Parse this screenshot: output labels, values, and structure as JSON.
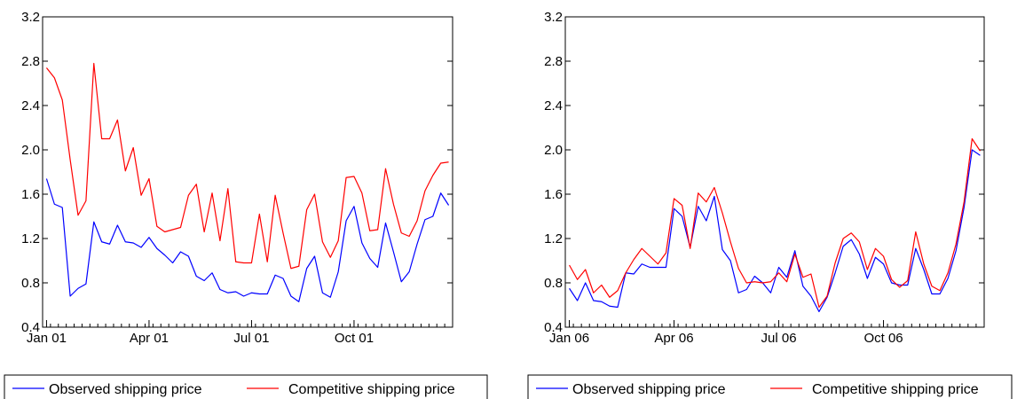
{
  "chart_data": [
    {
      "type": "line",
      "title": "",
      "xlabel": "",
      "ylabel": "",
      "ylim": [
        0.4,
        3.2
      ],
      "yticks": [
        "0.4",
        "0.8",
        "1.2",
        "1.6",
        "2.0",
        "2.4",
        "2.8",
        "3.2"
      ],
      "xtick_labels": [
        {
          "label": "Jan 01",
          "week": 0
        },
        {
          "label": "Apr 01",
          "week": 13
        },
        {
          "label": "Jul 01",
          "week": 26
        },
        {
          "label": "Oct 01",
          "week": 39
        }
      ],
      "n_weeks": 52,
      "grid": false,
      "legend_position": "bottom",
      "series": [
        {
          "name": "Observed shipping price",
          "color": "#0000ff",
          "values": [
            1.74,
            1.51,
            1.48,
            0.68,
            0.75,
            0.79,
            1.35,
            1.17,
            1.15,
            1.32,
            1.17,
            1.16,
            1.12,
            1.21,
            1.11,
            1.05,
            0.98,
            1.08,
            1.04,
            0.86,
            0.82,
            0.89,
            0.74,
            0.71,
            0.72,
            0.68,
            0.71,
            0.7,
            0.7,
            0.87,
            0.84,
            0.68,
            0.63,
            0.93,
            1.04,
            0.71,
            0.67,
            0.9,
            1.36,
            1.49,
            1.16,
            1.02,
            0.94,
            1.34,
            1.08,
            0.81,
            0.9,
            1.15,
            1.37,
            1.4,
            1.61,
            1.5
          ]
        },
        {
          "name": "Competitive shipping price",
          "color": "#ff0000",
          "values": [
            2.74,
            2.65,
            2.45,
            1.91,
            1.41,
            1.54,
            2.78,
            2.1,
            2.1,
            2.27,
            1.81,
            2.02,
            1.59,
            1.74,
            1.31,
            1.26,
            1.28,
            1.3,
            1.59,
            1.69,
            1.26,
            1.61,
            1.18,
            1.65,
            0.99,
            0.98,
            0.98,
            1.42,
            0.99,
            1.59,
            1.25,
            0.93,
            0.95,
            1.46,
            1.6,
            1.17,
            1.03,
            1.18,
            1.75,
            1.76,
            1.61,
            1.27,
            1.28,
            1.83,
            1.51,
            1.25,
            1.22,
            1.36,
            1.63,
            1.77,
            1.88,
            1.89
          ]
        }
      ]
    },
    {
      "type": "line",
      "title": "",
      "xlabel": "",
      "ylabel": "",
      "ylim": [
        0.4,
        3.2
      ],
      "yticks": [
        "0.4",
        "0.8",
        "1.2",
        "1.6",
        "2.0",
        "2.4",
        "2.8",
        "3.2"
      ],
      "xtick_labels": [
        {
          "label": "Jan 06",
          "week": 0
        },
        {
          "label": "Apr 06",
          "week": 13
        },
        {
          "label": "Jul 06",
          "week": 26
        },
        {
          "label": "Oct 06",
          "week": 39
        }
      ],
      "n_weeks": 52,
      "grid": false,
      "legend_position": "bottom",
      "series": [
        {
          "name": "Observed shipping price",
          "color": "#0000ff",
          "values": [
            0.75,
            0.64,
            0.8,
            0.64,
            0.63,
            0.59,
            0.58,
            0.89,
            0.88,
            0.97,
            0.94,
            0.94,
            0.94,
            1.47,
            1.4,
            1.12,
            1.49,
            1.36,
            1.58,
            1.1,
            1.0,
            0.71,
            0.74,
            0.86,
            0.8,
            0.71,
            0.94,
            0.85,
            1.09,
            0.77,
            0.68,
            0.54,
            0.67,
            0.89,
            1.13,
            1.19,
            1.06,
            0.84,
            1.03,
            0.97,
            0.8,
            0.78,
            0.78,
            1.11,
            0.92,
            0.7,
            0.7,
            0.84,
            1.09,
            1.48,
            2.0,
            1.95
          ]
        },
        {
          "name": "Competitive shipping price",
          "color": "#ff0000",
          "values": [
            0.96,
            0.83,
            0.92,
            0.71,
            0.78,
            0.67,
            0.73,
            0.89,
            1.01,
            1.11,
            1.04,
            0.97,
            1.07,
            1.56,
            1.5,
            1.11,
            1.61,
            1.53,
            1.66,
            1.43,
            1.17,
            0.93,
            0.8,
            0.81,
            0.8,
            0.81,
            0.89,
            0.81,
            1.06,
            0.85,
            0.88,
            0.58,
            0.68,
            0.98,
            1.2,
            1.25,
            1.17,
            0.92,
            1.11,
            1.04,
            0.83,
            0.76,
            0.82,
            1.26,
            0.97,
            0.77,
            0.73,
            0.89,
            1.15,
            1.53,
            2.1,
            1.99
          ]
        }
      ]
    }
  ]
}
